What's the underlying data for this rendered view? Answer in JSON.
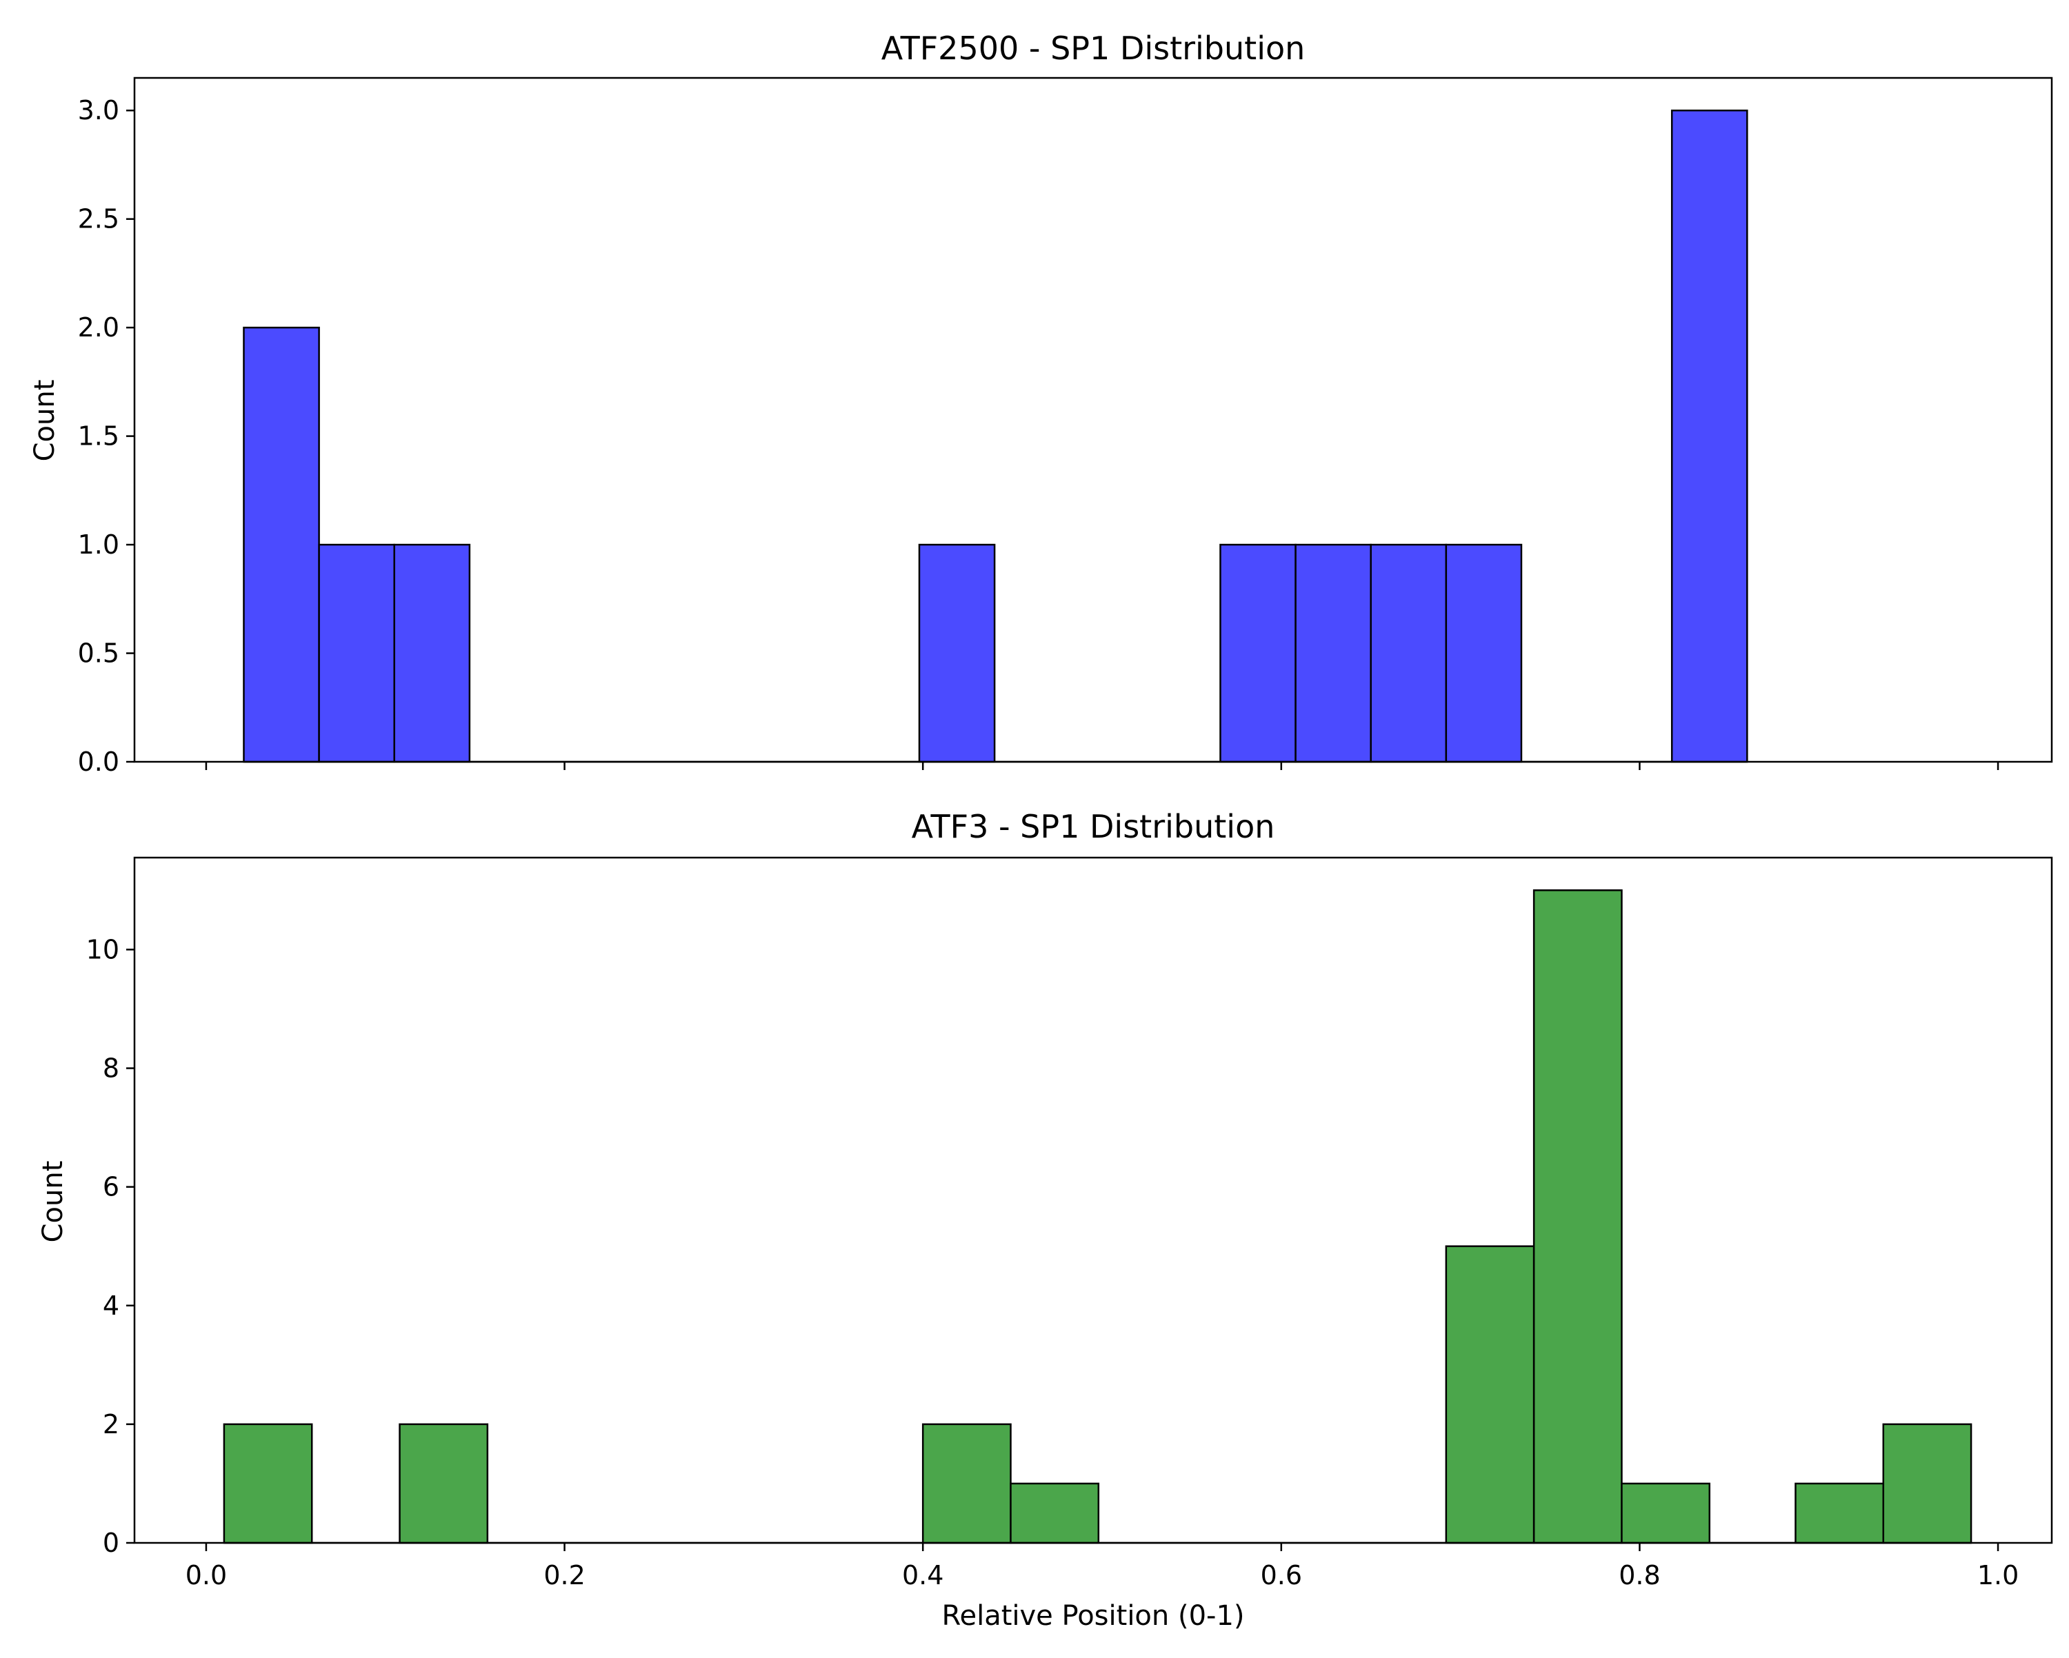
{
  "chart_data": [
    {
      "type": "bar",
      "panel": "top",
      "title": "ATF2500 - SP1 Distribution",
      "xlabel": "",
      "ylabel": "Count",
      "xlim": [
        -0.04,
        1.03
      ],
      "ylim": [
        0,
        3.15
      ],
      "xticks": [
        0.0,
        0.2,
        0.4,
        0.6,
        0.8,
        1.0
      ],
      "xtick_labels_visible": false,
      "yticks": [
        0.0,
        0.5,
        1.0,
        1.5,
        2.0,
        2.5,
        3.0
      ],
      "ytick_labels": [
        "0.0",
        "0.5",
        "1.0",
        "1.5",
        "2.0",
        "2.5",
        "3.0"
      ],
      "grid": false,
      "color": "#4b4bff",
      "bins": [
        {
          "x0": 0.021,
          "x1": 0.063,
          "value": 2
        },
        {
          "x0": 0.063,
          "x1": 0.105,
          "value": 1
        },
        {
          "x0": 0.105,
          "x1": 0.147,
          "value": 1
        },
        {
          "x0": 0.398,
          "x1": 0.44,
          "value": 1
        },
        {
          "x0": 0.566,
          "x1": 0.608,
          "value": 1
        },
        {
          "x0": 0.608,
          "x1": 0.65,
          "value": 1
        },
        {
          "x0": 0.65,
          "x1": 0.692,
          "value": 1
        },
        {
          "x0": 0.692,
          "x1": 0.734,
          "value": 1
        },
        {
          "x0": 0.818,
          "x1": 0.86,
          "value": 3
        }
      ]
    },
    {
      "type": "bar",
      "panel": "bottom",
      "title": "ATF3 - SP1 Distribution",
      "xlabel": "Relative Position (0-1)",
      "ylabel": "Count",
      "xlim": [
        -0.04,
        1.03
      ],
      "ylim": [
        0,
        11.55
      ],
      "xticks": [
        0.0,
        0.2,
        0.4,
        0.6,
        0.8,
        1.0
      ],
      "xtick_labels": [
        "0.0",
        "0.2",
        "0.4",
        "0.6",
        "0.8",
        "1.0"
      ],
      "yticks": [
        0,
        2,
        4,
        6,
        8,
        10
      ],
      "ytick_labels": [
        "0",
        "2",
        "4",
        "6",
        "8",
        "10"
      ],
      "grid": false,
      "color": "#4ba64b",
      "bins": [
        {
          "x0": 0.01,
          "x1": 0.059,
          "value": 2
        },
        {
          "x0": 0.108,
          "x1": 0.157,
          "value": 2
        },
        {
          "x0": 0.4,
          "x1": 0.449,
          "value": 2
        },
        {
          "x0": 0.449,
          "x1": 0.498,
          "value": 1
        },
        {
          "x0": 0.692,
          "x1": 0.741,
          "value": 5
        },
        {
          "x0": 0.741,
          "x1": 0.79,
          "value": 11
        },
        {
          "x0": 0.79,
          "x1": 0.839,
          "value": 1
        },
        {
          "x0": 0.887,
          "x1": 0.936,
          "value": 1
        },
        {
          "x0": 0.936,
          "x1": 0.985,
          "value": 2
        }
      ]
    }
  ]
}
